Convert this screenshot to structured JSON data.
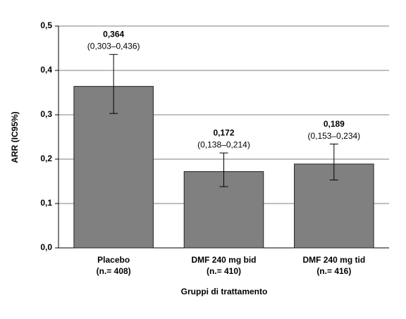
{
  "chart_data": {
    "type": "bar",
    "ylabel": "ARR (IC95%)",
    "xlabel": "Gruppi di trattamento",
    "categories": [
      [
        "Placebo",
        "(n.= 408)"
      ],
      [
        "DMF 240 mg bid",
        "(n.= 410)"
      ],
      [
        "DMF 240 mg tid",
        "(n.= 416)"
      ]
    ],
    "values": [
      0.364,
      0.172,
      0.189
    ],
    "value_labels": [
      "0,364",
      "0,172",
      "0,189"
    ],
    "ci_low": [
      0.303,
      0.138,
      0.153
    ],
    "ci_high": [
      0.436,
      0.214,
      0.234
    ],
    "ci_labels": [
      "(0,303–0,436)",
      "(0,138–0,214)",
      "(0,153–0,234)"
    ],
    "color": "#808080",
    "ylim": [
      0,
      0.5
    ],
    "yticks": [
      {
        "value": 0,
        "label": "0,0"
      },
      {
        "value": 0.1,
        "label": "0,1"
      },
      {
        "value": 0.2,
        "label": "0,2"
      },
      {
        "value": 0.3,
        "label": "0,3"
      },
      {
        "value": 0.4,
        "label": "0,4"
      },
      {
        "value": 0.5,
        "label": "0,5"
      }
    ],
    "grid": true
  }
}
